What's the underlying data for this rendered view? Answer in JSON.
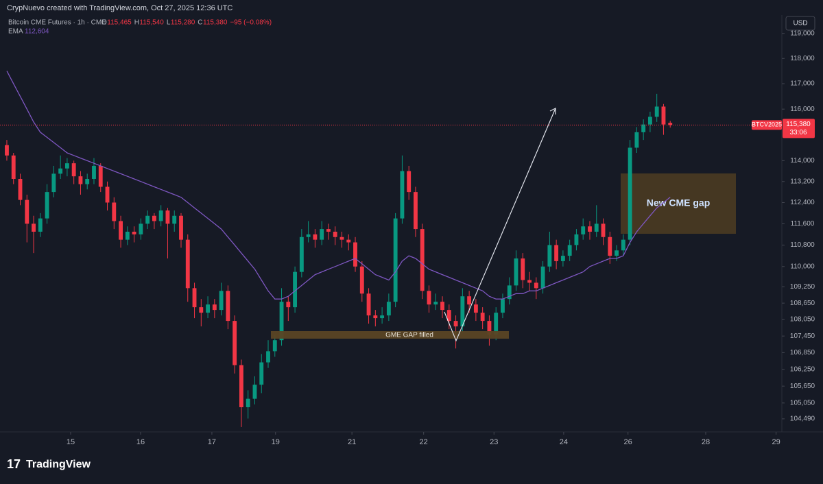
{
  "attribution": "CrypNuevo created with TradingView.com, Oct 27, 2025 12:36 UTC",
  "legend": {
    "name": "Bitcoin CME Futures · 1h · CME",
    "ohlc": [
      {
        "key": "O",
        "value": "115,465"
      },
      {
        "key": "H",
        "value": "115,540"
      },
      {
        "key": "L",
        "value": "115,280"
      },
      {
        "key": "C",
        "value": "115,380"
      }
    ],
    "change": "−95 (−0.08%)",
    "ema_name": "EMA",
    "ema_value": "112,604"
  },
  "currency": "USD",
  "logo": "TradingView",
  "chart_data": {
    "type": "candlestick",
    "log_scale": true,
    "grid": false,
    "up_color": "#089981",
    "down_color": "#f23645",
    "ema_color": "#7e57c2",
    "symbol_tag": "BTCV2025",
    "last_price_label": "115,380",
    "countdown": "33:06",
    "annotations": {
      "gap_filled": "GME GAP filled",
      "new_gap": "New CME gap"
    },
    "categories": [
      null,
      null,
      null,
      null,
      null,
      null,
      null,
      null,
      null,
      null,
      null,
      null,
      null,
      null,
      null,
      null,
      null,
      null,
      null,
      null,
      null,
      null,
      null,
      null,
      null,
      null,
      null,
      null,
      null,
      null,
      null,
      null,
      null,
      null,
      null,
      null,
      null,
      null,
      null,
      null,
      null,
      null,
      null,
      null,
      null,
      null,
      null,
      null,
      null,
      null,
      null,
      null,
      null,
      null,
      null,
      null,
      null,
      null,
      null,
      null,
      null,
      null,
      null,
      null,
      null,
      null,
      null,
      null,
      null,
      null,
      null,
      null,
      null,
      null,
      null,
      null,
      null,
      null,
      null,
      null,
      null,
      null,
      null,
      null,
      null,
      null,
      null,
      null,
      null,
      null,
      null,
      null,
      null,
      null,
      null,
      null,
      null,
      null,
      null,
      null
    ],
    "candles": [
      [
        114600,
        114800,
        114000,
        114200
      ],
      [
        114200,
        114300,
        113100,
        113300
      ],
      [
        113300,
        113500,
        112300,
        112500
      ],
      [
        112500,
        112700,
        110900,
        111600
      ],
      [
        111600,
        111900,
        110500,
        111300
      ],
      [
        111300,
        112000,
        111100,
        111800
      ],
      [
        111800,
        113100,
        111600,
        112800
      ],
      [
        112800,
        113800,
        112600,
        113500
      ],
      [
        113500,
        114200,
        113300,
        113700
      ],
      [
        113700,
        114100,
        113400,
        113900
      ],
      [
        113900,
        114000,
        113100,
        113400
      ],
      [
        113400,
        113600,
        112700,
        113100
      ],
      [
        113100,
        113500,
        112900,
        113300
      ],
      [
        113300,
        114100,
        113100,
        113800
      ],
      [
        113800,
        113900,
        112800,
        113000
      ],
      [
        113000,
        113200,
        112100,
        112400
      ],
      [
        112400,
        112600,
        111400,
        111700
      ],
      [
        111700,
        111900,
        110700,
        111000
      ],
      [
        111000,
        111500,
        110800,
        111300
      ],
      [
        111300,
        111500,
        110900,
        111200
      ],
      [
        111200,
        111800,
        111000,
        111600
      ],
      [
        111600,
        112100,
        111400,
        111900
      ],
      [
        111900,
        112000,
        111400,
        111700
      ],
      [
        111700,
        112300,
        111500,
        112100
      ],
      [
        112100,
        112200,
        110300,
        111600
      ],
      [
        111600,
        112100,
        111300,
        111900
      ],
      [
        111900,
        112000,
        110700,
        111000
      ],
      [
        111000,
        111200,
        108700,
        109200
      ],
      [
        109200,
        109400,
        108100,
        108500
      ],
      [
        108500,
        108800,
        107800,
        108300
      ],
      [
        108300,
        108900,
        108100,
        108600
      ],
      [
        108600,
        108800,
        108100,
        108400
      ],
      [
        108400,
        109400,
        108200,
        109100
      ],
      [
        109100,
        109300,
        107700,
        108000
      ],
      [
        108000,
        108200,
        106100,
        106400
      ],
      [
        106400,
        106600,
        104200,
        104900
      ],
      [
        104900,
        105500,
        104500,
        105200
      ],
      [
        105200,
        106000,
        105000,
        105700
      ],
      [
        105700,
        106800,
        105400,
        106500
      ],
      [
        106500,
        107300,
        106300,
        106900
      ],
      [
        106900,
        107500,
        106700,
        107300
      ],
      [
        107300,
        109200,
        107100,
        108700
      ],
      [
        108700,
        108900,
        108000,
        108500
      ],
      [
        108500,
        110000,
        108300,
        109800
      ],
      [
        109800,
        111400,
        109600,
        111100
      ],
      [
        111100,
        111700,
        110900,
        111200
      ],
      [
        111200,
        111400,
        110700,
        111000
      ],
      [
        111000,
        111700,
        110800,
        111400
      ],
      [
        111400,
        111600,
        111000,
        111300
      ],
      [
        111300,
        111500,
        110800,
        111100
      ],
      [
        111100,
        111300,
        110700,
        111000
      ],
      [
        111000,
        111200,
        110600,
        110900
      ],
      [
        110900,
        111100,
        109800,
        110000
      ],
      [
        110000,
        110200,
        108700,
        109000
      ],
      [
        109000,
        109200,
        107900,
        108200
      ],
      [
        108200,
        108400,
        107800,
        108100
      ],
      [
        108100,
        108500,
        107900,
        108200
      ],
      [
        108200,
        109000,
        108000,
        108700
      ],
      [
        108700,
        112000,
        108500,
        111800
      ],
      [
        111800,
        114200,
        111600,
        113600
      ],
      [
        113600,
        113800,
        112500,
        112800
      ],
      [
        112800,
        113000,
        111100,
        111400
      ],
      [
        111400,
        111600,
        108800,
        109100
      ],
      [
        109100,
        109300,
        108300,
        108600
      ],
      [
        108600,
        109000,
        108400,
        108700
      ],
      [
        108700,
        108900,
        108100,
        108400
      ],
      [
        108400,
        108600,
        107700,
        108000
      ],
      [
        108000,
        108200,
        107000,
        107800
      ],
      [
        107800,
        109200,
        107600,
        108900
      ],
      [
        108900,
        109100,
        108300,
        108600
      ],
      [
        108600,
        108800,
        108000,
        108300
      ],
      [
        108300,
        108500,
        107700,
        108000
      ],
      [
        108000,
        108200,
        107100,
        107500
      ],
      [
        107500,
        108500,
        107300,
        108300
      ],
      [
        108300,
        109000,
        108100,
        108800
      ],
      [
        108800,
        109600,
        108600,
        109300
      ],
      [
        109300,
        110600,
        109100,
        110300
      ],
      [
        110300,
        110500,
        109200,
        109500
      ],
      [
        109500,
        109800,
        109100,
        109400
      ],
      [
        109400,
        109600,
        108800,
        109200
      ],
      [
        109200,
        110200,
        109000,
        110000
      ],
      [
        110000,
        111300,
        109800,
        110800
      ],
      [
        110800,
        111000,
        109900,
        110200
      ],
      [
        110200,
        110600,
        110000,
        110400
      ],
      [
        110400,
        111000,
        110200,
        110800
      ],
      [
        110800,
        111400,
        110600,
        111200
      ],
      [
        111200,
        111800,
        111000,
        111500
      ],
      [
        111500,
        111700,
        111000,
        111300
      ],
      [
        111300,
        112300,
        111100,
        111600
      ],
      [
        111600,
        111800,
        110800,
        111100
      ],
      [
        111100,
        111300,
        110100,
        110400
      ],
      [
        110400,
        110800,
        110200,
        110600
      ],
      [
        110600,
        111200,
        110400,
        111000
      ],
      [
        111000,
        114800,
        110800,
        114500
      ],
      [
        114500,
        115300,
        114300,
        115100
      ],
      [
        115100,
        115600,
        114800,
        115400
      ],
      [
        115400,
        115900,
        115100,
        115700
      ],
      [
        115700,
        116600,
        115500,
        116100
      ],
      [
        116100,
        116200,
        115000,
        115400
      ],
      [
        115465,
        115540,
        115280,
        115380
      ]
    ],
    "ema": [
      117500,
      117000,
      116500,
      116000,
      115500,
      115100,
      114900,
      114700,
      114500,
      114300,
      114200,
      114100,
      114000,
      113900,
      113800,
      113700,
      113600,
      113500,
      113400,
      113300,
      113200,
      113100,
      113000,
      112900,
      112800,
      112700,
      112600,
      112400,
      112200,
      112000,
      111800,
      111600,
      111400,
      111100,
      110800,
      110500,
      110200,
      109900,
      109500,
      109100,
      108800,
      108800,
      108900,
      109100,
      109300,
      109500,
      109700,
      109800,
      109900,
      110000,
      110100,
      110200,
      110300,
      110100,
      109900,
      109700,
      109600,
      109500,
      109800,
      110200,
      110400,
      110300,
      110100,
      109900,
      109800,
      109700,
      109600,
      109500,
      109400,
      109300,
      109200,
      109100,
      108900,
      108800,
      108800,
      108900,
      109000,
      109000,
      109100,
      109100,
      109200,
      109300,
      109400,
      109500,
      109600,
      109700,
      109800,
      110000,
      110100,
      110200,
      110300,
      110300,
      110400,
      110900,
      111300,
      111600,
      111900,
      112200,
      112400,
      112604
    ],
    "xlim": [
      -1.02,
      115.66
    ],
    "xticks": [
      {
        "value": 9.52,
        "label": "15"
      },
      {
        "value": 19.96,
        "label": "16"
      },
      {
        "value": 30.6,
        "label": "17"
      },
      {
        "value": 40.1,
        "label": "19"
      },
      {
        "value": 51.5,
        "label": "21"
      },
      {
        "value": 62.2,
        "label": "22"
      },
      {
        "value": 72.7,
        "label": "23"
      },
      {
        "value": 83.1,
        "label": "24"
      },
      {
        "value": 92.7,
        "label": "26"
      },
      {
        "value": 104.3,
        "label": "28"
      },
      {
        "value": 114.8,
        "label": "29"
      }
    ],
    "ylim": [
      104030,
      119740
    ],
    "yticks": [
      {
        "value": 119000,
        "label": "119,000"
      },
      {
        "value": 118000,
        "label": "118,000"
      },
      {
        "value": 117000,
        "label": "117,000"
      },
      {
        "value": 116000,
        "label": "116,000"
      },
      {
        "value": 114000,
        "label": "114,000"
      },
      {
        "value": 113200,
        "label": "113,200"
      },
      {
        "value": 112400,
        "label": "112,400"
      },
      {
        "value": 111600,
        "label": "111,600"
      },
      {
        "value": 110800,
        "label": "110,800"
      },
      {
        "value": 110000,
        "label": "110,000"
      },
      {
        "value": 109250,
        "label": "109,250"
      },
      {
        "value": 108650,
        "label": "108,650"
      },
      {
        "value": 108050,
        "label": "108,050"
      },
      {
        "value": 107450,
        "label": "107,450"
      },
      {
        "value": 106850,
        "label": "106,850"
      },
      {
        "value": 106250,
        "label": "106,250"
      },
      {
        "value": 105650,
        "label": "105,650"
      },
      {
        "value": 105050,
        "label": "105,050"
      },
      {
        "value": 104490,
        "label": "104,490"
      }
    ]
  }
}
